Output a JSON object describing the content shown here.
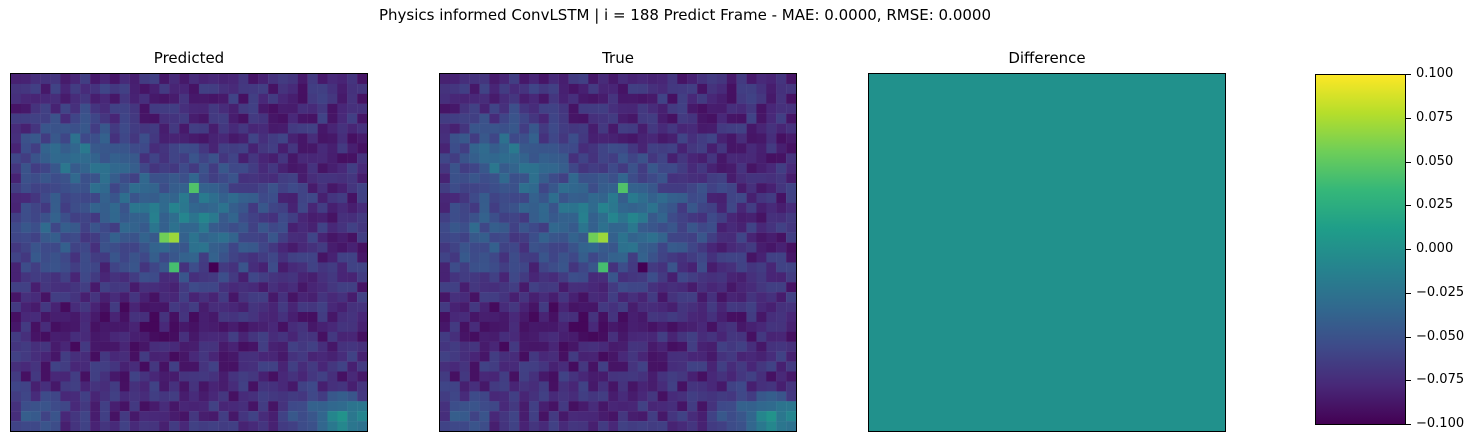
{
  "figure": {
    "suptitle": "Physics informed ConvLSTM | i = 188 Predict Frame - MAE: 0.0000, RMSE: 0.0000"
  },
  "chart_data": [
    {
      "type": "heatmap",
      "title": "Predicted",
      "colormap": "viridis",
      "grid": false,
      "axes_ticks": false
    },
    {
      "type": "heatmap",
      "title": "True",
      "colormap": "viridis",
      "grid": false,
      "axes_ticks": false
    },
    {
      "type": "heatmap",
      "title": "Difference",
      "colormap": "viridis",
      "grid": false,
      "axes_ticks": false,
      "uniform_value": 0.0,
      "uniform_color": "#21918c"
    }
  ],
  "colorbar": {
    "colormap": "viridis",
    "range": [
      -0.1,
      0.1
    ],
    "ticks": [
      {
        "value": 0.1,
        "label": "0.100"
      },
      {
        "value": 0.075,
        "label": "0.075"
      },
      {
        "value": 0.05,
        "label": "0.050"
      },
      {
        "value": 0.025,
        "label": "0.025"
      },
      {
        "value": 0.0,
        "label": "0.000"
      },
      {
        "value": -0.025,
        "label": "−0.025"
      },
      {
        "value": -0.05,
        "label": "−0.050"
      },
      {
        "value": -0.075,
        "label": "−0.075"
      },
      {
        "value": -0.1,
        "label": "−0.100"
      }
    ]
  }
}
